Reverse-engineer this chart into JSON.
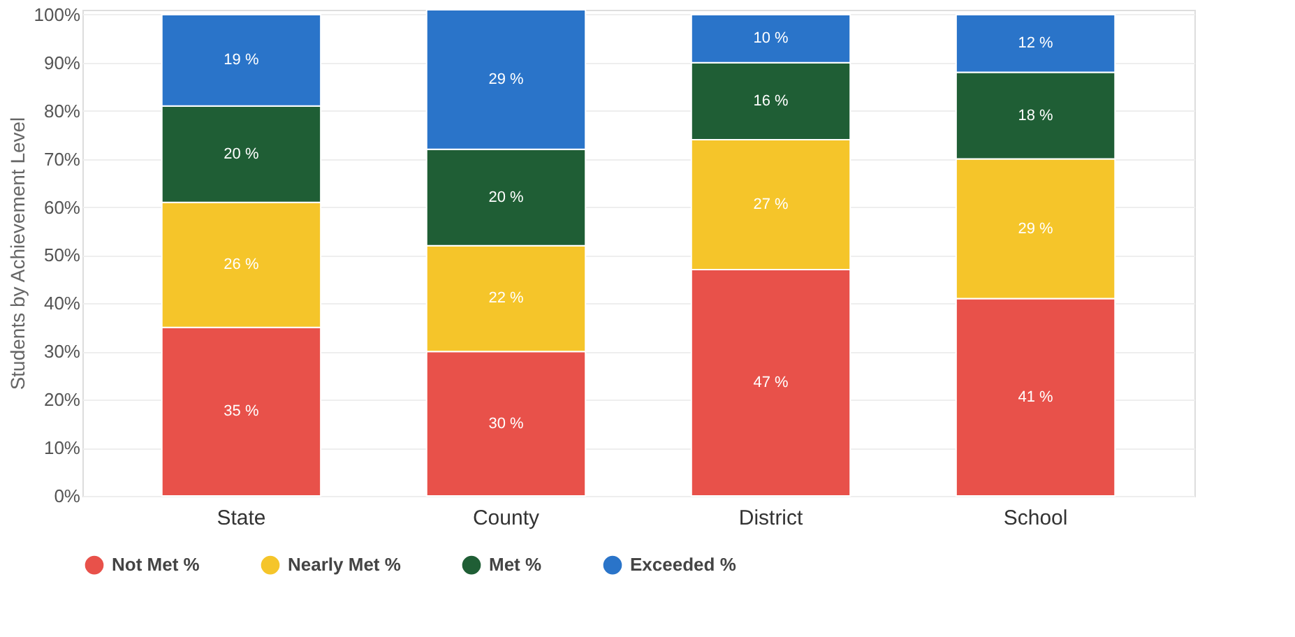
{
  "chart_data": {
    "type": "bar",
    "stacked": true,
    "ylabel": "Students by Achievement Level",
    "categories": [
      "State",
      "County",
      "District",
      "School"
    ],
    "series": [
      {
        "name": "Not Met %",
        "color": "#e8514a",
        "values": [
          35,
          30,
          47,
          41
        ],
        "value_labels": [
          "35 %",
          "30 %",
          "47 %",
          "41 %"
        ]
      },
      {
        "name": "Nearly Met %",
        "color": "#f5c52a",
        "values": [
          26,
          22,
          27,
          29
        ],
        "value_labels": [
          "26 %",
          "22 %",
          "27 %",
          "29 %"
        ]
      },
      {
        "name": "Met %",
        "color": "#1f5e35",
        "values": [
          20,
          20,
          16,
          18
        ],
        "value_labels": [
          "20 %",
          "20 %",
          "16 %",
          "18 %"
        ]
      },
      {
        "name": "Exceeded %",
        "color": "#2a74c9",
        "values": [
          19,
          29,
          10,
          12
        ],
        "value_labels": [
          "19 %",
          "29 %",
          "10 %",
          "12 %"
        ]
      }
    ],
    "ylim": [
      0,
      101
    ],
    "yticks": [
      {
        "value": 0,
        "label": "0%"
      },
      {
        "value": 10,
        "label": "10%"
      },
      {
        "value": 20,
        "label": "20%"
      },
      {
        "value": 30,
        "label": "30%"
      },
      {
        "value": 40,
        "label": "40%"
      },
      {
        "value": 50,
        "label": "50%"
      },
      {
        "value": 60,
        "label": "60%"
      },
      {
        "value": 70,
        "label": "70%"
      },
      {
        "value": 80,
        "label": "80%"
      },
      {
        "value": 90,
        "label": "90%"
      },
      {
        "value": 100,
        "label": "100%"
      }
    ],
    "grid": "y",
    "legend": "bottom"
  }
}
